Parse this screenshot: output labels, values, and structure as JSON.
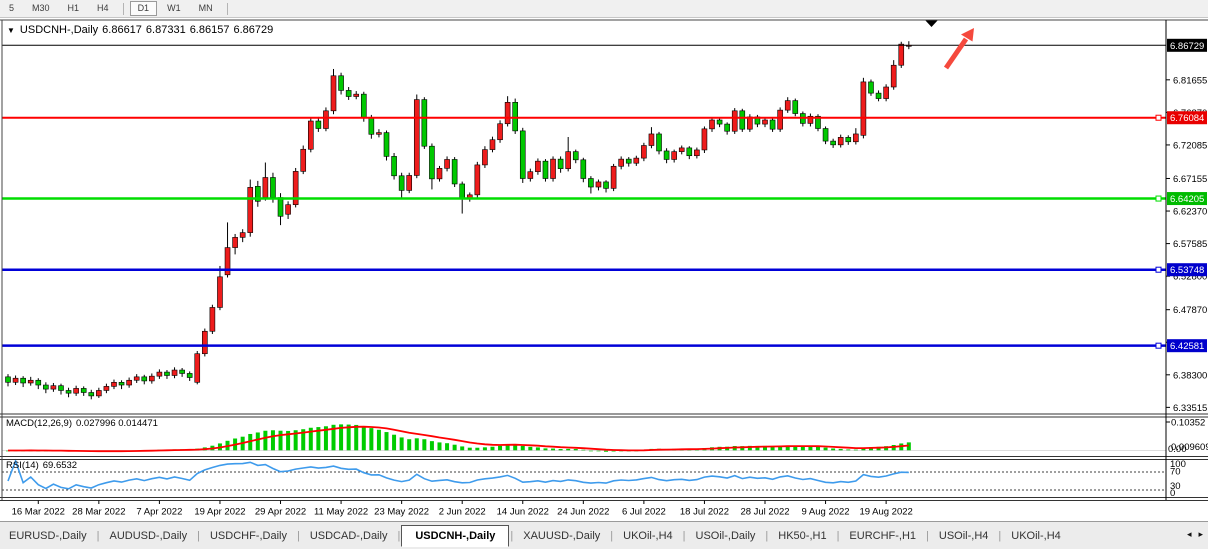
{
  "toolbar": {
    "timeframes": [
      {
        "label": "5",
        "active": false,
        "divider_after": false
      },
      {
        "label": "M30",
        "active": false,
        "divider_after": false
      },
      {
        "label": "H1",
        "active": false,
        "divider_after": false
      },
      {
        "label": "H4",
        "active": false,
        "divider_after": true
      },
      {
        "label": "D1",
        "active": true,
        "divider_after": false
      },
      {
        "label": "W1",
        "active": false,
        "divider_after": false
      },
      {
        "label": "MN",
        "active": false,
        "divider_after": true
      }
    ]
  },
  "chart": {
    "title": {
      "dropdown_icon": "▼",
      "symbol": "USDCNH-,Daily",
      "open": "6.86617",
      "high": "6.87331",
      "low": "6.86157",
      "close": "6.86729"
    },
    "price_axis": {
      "ticks": [
        "6.81655",
        "6.76870",
        "6.72085",
        "6.67155",
        "6.62370",
        "6.57585",
        "6.52800",
        "6.47870",
        "6.43085",
        "6.38300",
        "6.33515"
      ],
      "badges": [
        {
          "value": "6.86729",
          "price": 6.86729,
          "color": "#000000"
        },
        {
          "value": "6.76084",
          "price": 6.76084,
          "color": "#e80000"
        },
        {
          "value": "6.64205",
          "price": 6.64205,
          "color": "#00bb00"
        },
        {
          "value": "6.53748",
          "price": 6.53748,
          "color": "#0000cc"
        },
        {
          "value": "6.42581",
          "price": 6.42581,
          "color": "#0000cc"
        }
      ]
    },
    "objects": {
      "arrow_color": "#f5493d",
      "marker_color": "#000000"
    }
  },
  "indicators": {
    "macd": {
      "label": "MACD(12,26,9)",
      "values": "0.027996 0.014471",
      "params": [
        12,
        26,
        9
      ],
      "hist_color": "#00cc00",
      "signal_color": "#ff0000",
      "axis_top": "0.10352",
      "axis_zero": "0.00",
      "axis_current": "0.0096096"
    },
    "rsi": {
      "label": "RSI(14)",
      "value": "69.6532",
      "period": 14,
      "levels": [
        "100",
        "70",
        "30",
        "0"
      ],
      "line_color": "#3e9bec"
    }
  },
  "chart_data": {
    "type": "candlestick",
    "symbol": "USDCNH",
    "timeframe": "Daily",
    "ylim": [
      6.33515,
      6.87331
    ],
    "bull_color": "#ee1c1c",
    "bear_color": "#00c800",
    "current_price": 6.86729,
    "hlines": [
      {
        "price": 6.76084,
        "color": "#ff0000",
        "width": 2
      },
      {
        "price": 6.64205,
        "color": "#00dd00",
        "width": 2.5
      },
      {
        "price": 6.53748,
        "color": "#0000d8",
        "width": 2.5
      },
      {
        "price": 6.42581,
        "color": "#0000d8",
        "width": 2.5
      }
    ],
    "date_ticks": {
      "labels": [
        "16 Mar 2022",
        "28 Mar 2022",
        "7 Apr 2022",
        "19 Apr 2022",
        "29 Apr 2022",
        "11 May 2022",
        "23 May 2022",
        "2 Jun 2022",
        "14 Jun 2022",
        "24 Jun 2022",
        "6 Jul 2022",
        "18 Jul 2022",
        "28 Jul 2022",
        "9 Aug 2022",
        "19 Aug 2022"
      ],
      "indices": [
        4,
        12,
        20,
        28,
        36,
        44,
        52,
        60,
        68,
        76,
        84,
        92,
        100,
        108,
        116
      ]
    },
    "candles": [
      [
        6.38,
        6.384,
        6.366,
        6.372
      ],
      [
        6.372,
        6.382,
        6.368,
        6.378
      ],
      [
        6.378,
        6.381,
        6.365,
        6.371
      ],
      [
        6.371,
        6.38,
        6.367,
        6.375
      ],
      [
        6.375,
        6.378,
        6.362,
        6.368
      ],
      [
        6.368,
        6.372,
        6.356,
        6.362
      ],
      [
        6.362,
        6.371,
        6.358,
        6.367
      ],
      [
        6.367,
        6.37,
        6.354,
        6.36
      ],
      [
        6.36,
        6.364,
        6.35,
        6.356
      ],
      [
        6.356,
        6.367,
        6.352,
        6.363
      ],
      [
        6.363,
        6.366,
        6.352,
        6.357
      ],
      [
        6.357,
        6.361,
        6.347,
        6.352
      ],
      [
        6.352,
        6.364,
        6.349,
        6.36
      ],
      [
        6.36,
        6.37,
        6.356,
        6.366
      ],
      [
        6.366,
        6.376,
        6.362,
        6.372
      ],
      [
        6.372,
        6.375,
        6.362,
        6.368
      ],
      [
        6.368,
        6.379,
        6.364,
        6.375
      ],
      [
        6.375,
        6.384,
        6.371,
        6.38
      ],
      [
        6.38,
        6.383,
        6.369,
        6.374
      ],
      [
        6.374,
        6.385,
        6.37,
        6.381
      ],
      [
        6.381,
        6.391,
        6.377,
        6.387
      ],
      [
        6.387,
        6.39,
        6.377,
        6.382
      ],
      [
        6.382,
        6.394,
        6.378,
        6.39
      ],
      [
        6.39,
        6.393,
        6.38,
        6.385
      ],
      [
        6.385,
        6.388,
        6.374,
        6.379
      ],
      [
        6.372,
        6.418,
        6.369,
        6.414
      ],
      [
        6.414,
        6.451,
        6.41,
        6.447
      ],
      [
        6.447,
        6.486,
        6.443,
        6.482
      ],
      [
        6.482,
        6.543,
        6.478,
        6.527
      ],
      [
        6.53,
        6.607,
        6.526,
        6.57
      ],
      [
        6.57,
        6.59,
        6.56,
        6.585
      ],
      [
        6.585,
        6.597,
        6.578,
        6.592
      ],
      [
        6.592,
        6.67,
        6.586,
        6.6585
      ],
      [
        6.66,
        6.668,
        6.63,
        6.638
      ],
      [
        6.6435,
        6.695,
        6.639,
        6.673
      ],
      [
        6.673,
        6.68,
        6.636,
        6.6435
      ],
      [
        6.6435,
        6.65,
        6.603,
        6.616
      ],
      [
        6.619,
        6.638,
        6.612,
        6.633
      ],
      [
        6.633,
        6.687,
        6.629,
        6.682
      ],
      [
        6.682,
        6.72,
        6.678,
        6.7145
      ],
      [
        6.7145,
        6.76,
        6.71,
        6.756
      ],
      [
        6.756,
        6.762,
        6.74,
        6.745
      ],
      [
        6.745,
        6.776,
        6.741,
        6.771
      ],
      [
        6.771,
        6.8325,
        6.766,
        6.8225
      ],
      [
        6.8225,
        6.827,
        6.795,
        6.801
      ],
      [
        6.801,
        6.806,
        6.787,
        6.792
      ],
      [
        6.792,
        6.8,
        6.788,
        6.7955
      ],
      [
        6.7955,
        6.799,
        6.755,
        6.761
      ],
      [
        6.761,
        6.765,
        6.73,
        6.7365
      ],
      [
        6.7365,
        6.744,
        6.732,
        6.739
      ],
      [
        6.739,
        6.742,
        6.698,
        6.704
      ],
      [
        6.704,
        6.709,
        6.67,
        6.6755
      ],
      [
        6.6755,
        6.68,
        6.641,
        6.654
      ],
      [
        6.654,
        6.68,
        6.65,
        6.676
      ],
      [
        6.676,
        6.795,
        6.672,
        6.7875
      ],
      [
        6.7875,
        6.791,
        6.715,
        6.719
      ],
      [
        6.719,
        6.723,
        6.6555,
        6.671
      ],
      [
        6.671,
        6.69,
        6.667,
        6.6865
      ],
      [
        6.6865,
        6.704,
        6.682,
        6.6995
      ],
      [
        6.6995,
        6.703,
        6.659,
        6.6635
      ],
      [
        6.6635,
        6.667,
        6.62,
        6.6415
      ],
      [
        6.6415,
        6.651,
        6.6375,
        6.6475
      ],
      [
        6.6475,
        6.696,
        6.643,
        6.6915
      ],
      [
        6.6915,
        6.719,
        6.687,
        6.714
      ],
      [
        6.714,
        6.733,
        6.71,
        6.7285
      ],
      [
        6.7285,
        6.757,
        6.724,
        6.752
      ],
      [
        6.752,
        6.7925,
        6.748,
        6.7835
      ],
      [
        6.7835,
        6.789,
        6.737,
        6.7415
      ],
      [
        6.7415,
        6.746,
        6.665,
        6.6715
      ],
      [
        6.6715,
        6.686,
        6.667,
        6.6815
      ],
      [
        6.6815,
        6.701,
        6.677,
        6.697
      ],
      [
        6.697,
        6.7,
        6.667,
        6.6715
      ],
      [
        6.6715,
        6.704,
        6.667,
        6.7
      ],
      [
        6.7,
        6.704,
        6.68,
        6.686
      ],
      [
        6.686,
        6.7325,
        6.682,
        6.711
      ],
      [
        6.711,
        6.714,
        6.694,
        6.699
      ],
      [
        6.699,
        6.702,
        6.666,
        6.6715
      ],
      [
        6.6715,
        6.675,
        6.6495,
        6.659
      ],
      [
        6.659,
        6.67,
        6.654,
        6.6665
      ],
      [
        6.6665,
        6.669,
        6.651,
        6.657
      ],
      [
        6.657,
        6.693,
        6.653,
        6.6895
      ],
      [
        6.6895,
        6.704,
        6.685,
        6.7
      ],
      [
        6.7,
        6.703,
        6.689,
        6.694
      ],
      [
        6.694,
        6.705,
        6.69,
        6.7015
      ],
      [
        6.7015,
        6.724,
        6.697,
        6.72
      ],
      [
        6.72,
        6.747,
        6.716,
        6.737
      ],
      [
        6.737,
        6.74,
        6.707,
        6.712
      ],
      [
        6.712,
        6.716,
        6.694,
        6.6995
      ],
      [
        6.6995,
        6.714,
        6.695,
        6.711
      ],
      [
        6.711,
        6.72,
        6.707,
        6.7165
      ],
      [
        6.7165,
        6.719,
        6.7,
        6.705
      ],
      [
        6.705,
        6.717,
        6.701,
        6.7135
      ],
      [
        6.7135,
        6.748,
        6.709,
        6.7445
      ],
      [
        6.7445,
        6.761,
        6.74,
        6.7575
      ],
      [
        6.7575,
        6.76,
        6.747,
        6.7515
      ],
      [
        6.7515,
        6.754,
        6.736,
        6.741
      ],
      [
        6.741,
        6.775,
        6.737,
        6.771
      ],
      [
        6.771,
        6.774,
        6.74,
        6.744
      ],
      [
        6.744,
        6.766,
        6.74,
        6.762
      ],
      [
        6.762,
        6.765,
        6.747,
        6.7515
      ],
      [
        6.7515,
        6.761,
        6.747,
        6.7575
      ],
      [
        6.7575,
        6.76,
        6.74,
        6.744
      ],
      [
        6.744,
        6.776,
        6.74,
        6.772
      ],
      [
        6.772,
        6.791,
        6.768,
        6.786
      ],
      [
        6.786,
        6.789,
        6.763,
        6.767
      ],
      [
        6.767,
        6.77,
        6.748,
        6.7525
      ],
      [
        6.7525,
        6.767,
        6.748,
        6.763
      ],
      [
        6.763,
        6.766,
        6.741,
        6.745
      ],
      [
        6.745,
        6.748,
        6.722,
        6.7265
      ],
      [
        6.7265,
        6.73,
        6.7165,
        6.721
      ],
      [
        6.721,
        6.736,
        6.717,
        6.732
      ],
      [
        6.732,
        6.735,
        6.721,
        6.7255
      ],
      [
        6.7255,
        6.7455,
        6.7215,
        6.737
      ],
      [
        6.735,
        6.8195,
        6.7305,
        6.8135
      ],
      [
        6.8135,
        6.817,
        6.793,
        6.797
      ],
      [
        6.797,
        6.801,
        6.785,
        6.789
      ],
      [
        6.789,
        6.81,
        6.785,
        6.806
      ],
      [
        6.806,
        6.8455,
        6.802,
        6.838
      ],
      [
        6.838,
        6.8725,
        6.834,
        6.869
      ],
      [
        6.86617,
        6.87331,
        6.86157,
        6.86729
      ]
    ]
  },
  "tabs": {
    "items": [
      {
        "label": "EURUSD-,Daily",
        "active": false
      },
      {
        "label": "AUDUSD-,Daily",
        "active": false
      },
      {
        "label": "USDCHF-,Daily",
        "active": false
      },
      {
        "label": "USDCAD-,Daily",
        "active": false
      },
      {
        "label": "USDCNH-,Daily",
        "active": true
      },
      {
        "label": "XAUUSD-,Daily",
        "active": false
      },
      {
        "label": "UKOil-,H4",
        "active": false
      },
      {
        "label": "USOil-,Daily",
        "active": false
      },
      {
        "label": "HK50-,H1",
        "active": false
      },
      {
        "label": "EURCHF-,H1",
        "active": false
      },
      {
        "label": "USOil-,H4",
        "active": false
      },
      {
        "label": "UKOil-,H4",
        "active": false
      }
    ],
    "scroll_left": "◂",
    "scroll_right": "▸"
  }
}
